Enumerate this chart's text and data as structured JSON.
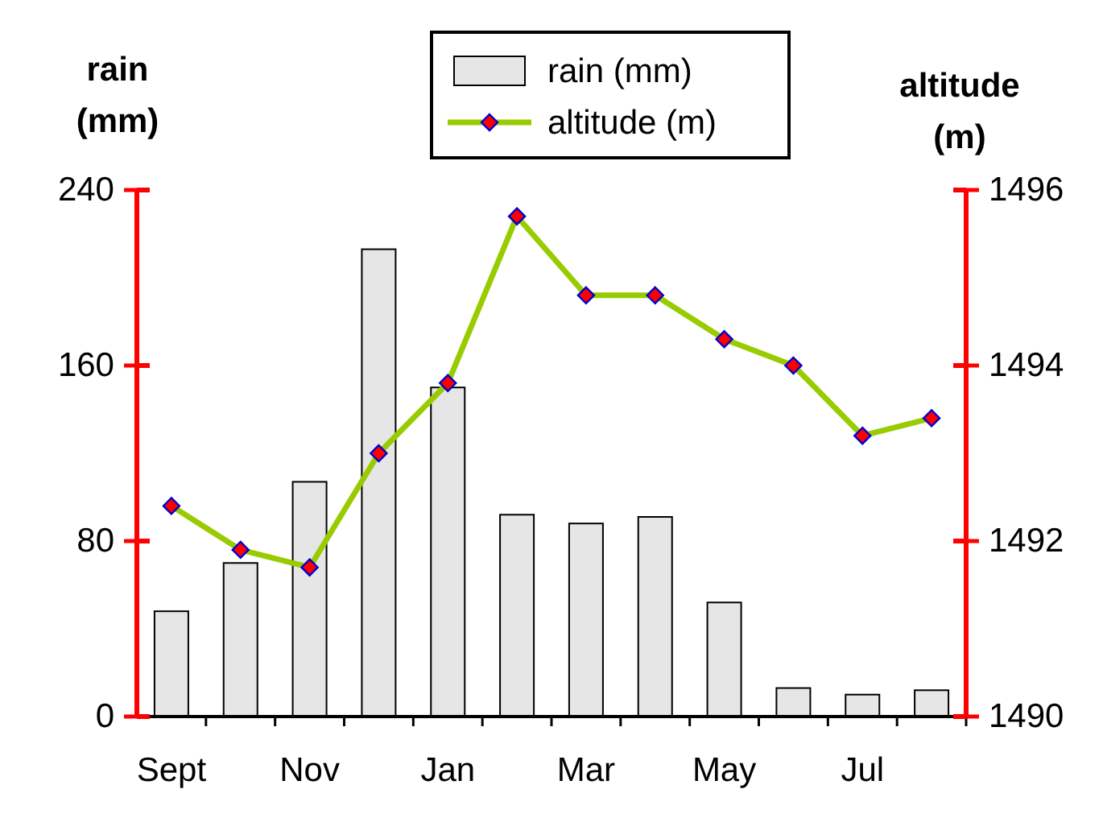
{
  "chart_data": {
    "type": "bar",
    "ylabel": "rain (mm)",
    "y2label": "altitude (m)",
    "categories": [
      "Sept",
      null,
      "Nov",
      null,
      "Jan",
      null,
      "Mar",
      null,
      "May",
      null,
      "Jul",
      null
    ],
    "series": [
      {
        "name": "rain (mm)",
        "color": "#e6e6e6",
        "values": [
          48,
          70,
          107,
          213,
          150,
          92,
          88,
          91,
          52,
          13,
          10,
          12
        ]
      },
      {
        "name": "altitude (m)",
        "type": "line",
        "axis": "y2",
        "color": "#99cc00",
        "marker": "diamond",
        "values": [
          1492.4,
          1491.9,
          1491.7,
          1493.0,
          1493.8,
          1495.7,
          1494.8,
          1494.8,
          1494.3,
          1494.0,
          1493.2,
          1493.4
        ]
      }
    ],
    "ylim": [
      0,
      240
    ],
    "yticks": [
      0,
      80,
      160,
      240
    ],
    "y2lim": [
      1490,
      1496
    ],
    "y2ticks": [
      1490,
      1492,
      1494,
      1496
    ],
    "legend": "top",
    "grid": false
  }
}
